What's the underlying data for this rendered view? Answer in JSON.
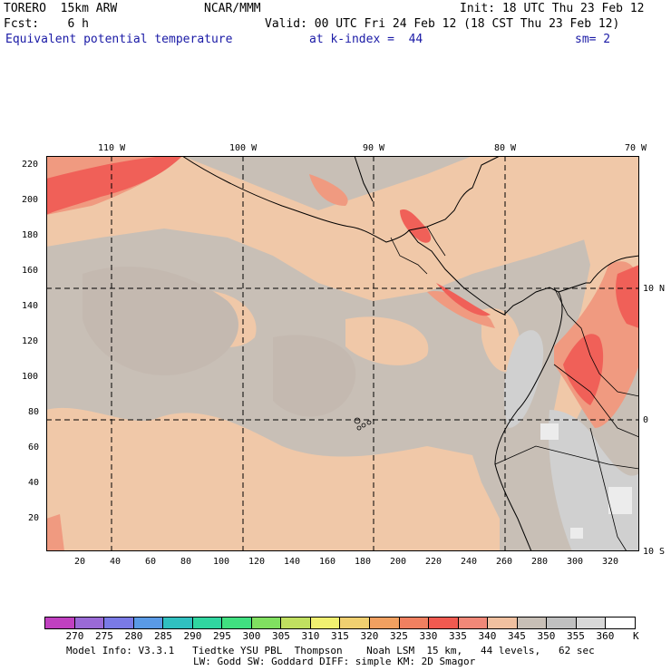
{
  "header": {
    "model": "TORERO  15km ARW",
    "org": "NCAR/MMM",
    "init": "Init: 18 UTC Thu 23 Feb 12",
    "fcst": "Fcst:    6 h",
    "valid": "Valid: 00 UTC Fri 24 Feb 12 (18 CST Thu 23 Feb 12)",
    "field": "Equivalent potential temperature",
    "level": "at k-index =  44",
    "smooth": "sm= 2"
  },
  "map": {
    "lon_labels": [
      "110 W",
      "100 W",
      "90 W",
      "80 W",
      "70 W"
    ],
    "lat_labels": [
      "10 N",
      "0",
      "10 S"
    ],
    "y_ticks": [
      "220",
      "200",
      "180",
      "160",
      "140",
      "120",
      "100",
      "80",
      "60",
      "40",
      "20"
    ],
    "x_ticks": [
      "20",
      "40",
      "60",
      "80",
      "100",
      "120",
      "140",
      "160",
      "180",
      "200",
      "220",
      "240",
      "260",
      "280",
      "300",
      "320"
    ]
  },
  "colorbar": {
    "unit": "K",
    "levels": [
      "270",
      "275",
      "280",
      "285",
      "290",
      "295",
      "300",
      "305",
      "310",
      "315",
      "320",
      "325",
      "330",
      "335",
      "340",
      "345",
      "350",
      "355",
      "360"
    ],
    "colors": [
      "#c040c0",
      "#9a6ad6",
      "#7a7ae6",
      "#5a9ae6",
      "#30c0c0",
      "#30d6a0",
      "#40e080",
      "#80e060",
      "#c0e060",
      "#f0f070",
      "#f0d070",
      "#f0a060",
      "#f08060",
      "#f05a50",
      "#f08878",
      "#f0c0a0",
      "#c8bfb6",
      "#c0c0c0",
      "#d8d8d8",
      "#ffffff"
    ]
  },
  "footer": {
    "line1": "Model Info: V3.3.1   Tiedtke YSU PBL  Thompson    Noah LSM  15 km,   44 levels,   62 sec",
    "line2": "LW: Godd SW: Goddard DIFF: simple KM: 2D Smagor"
  }
}
